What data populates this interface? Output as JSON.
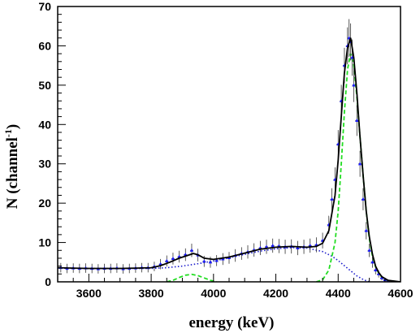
{
  "chart_data": {
    "type": "scatter",
    "title": "",
    "xlabel": "energy (keV)",
    "ylabel": {
      "main": "N (channel",
      "superscript": "-1",
      "close": ")"
    },
    "xlim": [
      3500,
      4600
    ],
    "ylim": [
      0,
      70
    ],
    "x_ticks": [
      "3600",
      "3800",
      "4000",
      "4200",
      "4400",
      "4600"
    ],
    "y_ticks": [
      "0",
      "10",
      "20",
      "30",
      "40",
      "50",
      "60",
      "70"
    ],
    "grid": false,
    "legend": "none",
    "colors": {
      "data_points": "#1a1aff",
      "total_fit": "#000000",
      "peak_components": "#22dd22",
      "background_component": "#1a1acc"
    },
    "series": [
      {
        "kind": "data-points-with-errorbars",
        "x": [
          3510,
          3530,
          3550,
          3570,
          3590,
          3610,
          3630,
          3650,
          3670,
          3690,
          3710,
          3730,
          3750,
          3770,
          3790,
          3810,
          3830,
          3850,
          3870,
          3890,
          3910,
          3930,
          3950,
          3970,
          3990,
          4010,
          4030,
          4050,
          4070,
          4090,
          4110,
          4130,
          4150,
          4170,
          4190,
          4210,
          4230,
          4250,
          4270,
          4290,
          4310,
          4330,
          4350,
          4370,
          4380,
          4390,
          4400,
          4410,
          4420,
          4430,
          4435,
          4440,
          4445,
          4450,
          4460,
          4470,
          4480,
          4490,
          4500,
          4510,
          4520,
          4530,
          4540,
          4550,
          4560
        ],
        "y": [
          3.6,
          3.4,
          3.5,
          3.4,
          3.5,
          3.4,
          3.3,
          3.4,
          3.4,
          3.5,
          3.3,
          3.4,
          3.5,
          3.6,
          3.6,
          3.9,
          4.5,
          5.3,
          5.9,
          6.4,
          6.9,
          8.0,
          6.8,
          5.2,
          5.0,
          5.4,
          5.8,
          6.1,
          6.7,
          7.2,
          7.6,
          8.1,
          8.6,
          8.9,
          9.2,
          9.1,
          8.9,
          9.0,
          8.6,
          8.9,
          9.2,
          9.4,
          10.5,
          14.5,
          21.0,
          26.0,
          35.0,
          46.0,
          55.0,
          60.0,
          62.0,
          61.0,
          57.0,
          50.0,
          41.0,
          30.0,
          21.0,
          13.0,
          8.0,
          5.0,
          3.0,
          2.0,
          1.0,
          0.5,
          0.2
        ],
        "yerr": [
          1.2,
          1.2,
          1.2,
          1.2,
          1.2,
          1.2,
          1.2,
          1.2,
          1.2,
          1.2,
          1.2,
          1.2,
          1.2,
          1.2,
          1.2,
          1.2,
          1.3,
          1.4,
          1.5,
          1.5,
          1.6,
          1.7,
          1.6,
          1.4,
          1.4,
          1.4,
          1.5,
          1.5,
          1.6,
          1.6,
          1.7,
          1.7,
          1.8,
          1.8,
          1.8,
          1.8,
          1.8,
          1.8,
          1.8,
          1.8,
          1.8,
          1.9,
          2.0,
          2.3,
          2.8,
          3.1,
          3.6,
          4.1,
          4.5,
          4.7,
          4.8,
          4.7,
          4.6,
          4.3,
          3.9,
          3.3,
          2.8,
          2.2,
          1.7,
          1.4,
          1.1,
          0.9,
          0.6,
          0.5,
          0.3
        ]
      },
      {
        "kind": "total-fit",
        "x": [
          3500,
          3550,
          3600,
          3650,
          3700,
          3750,
          3800,
          3830,
          3860,
          3890,
          3920,
          3935,
          3950,
          3970,
          4000,
          4050,
          4100,
          4150,
          4200,
          4250,
          4300,
          4330,
          4350,
          4370,
          4390,
          4400,
          4410,
          4420,
          4430,
          4440,
          4450,
          4460,
          4470,
          4480,
          4490,
          4500,
          4510,
          4520,
          4530,
          4540,
          4560,
          4600
        ],
        "y": [
          3.6,
          3.5,
          3.4,
          3.4,
          3.4,
          3.5,
          3.6,
          4.1,
          5.0,
          6.0,
          6.8,
          7.2,
          6.9,
          6.0,
          5.7,
          6.3,
          7.3,
          8.3,
          8.8,
          9.0,
          8.8,
          9.0,
          9.8,
          13.0,
          22.0,
          31.0,
          42.0,
          53.0,
          59.5,
          62.0,
          57.0,
          48.0,
          37.0,
          27.0,
          18.0,
          11.5,
          7.0,
          4.0,
          2.4,
          1.3,
          0.4,
          0.0
        ]
      },
      {
        "kind": "peak-component-1",
        "x": [
          3850,
          3870,
          3890,
          3910,
          3930,
          3950,
          3970,
          3990,
          4010
        ],
        "y": [
          0.0,
          0.4,
          1.1,
          1.7,
          1.9,
          1.6,
          1.0,
          0.4,
          0.0
        ]
      },
      {
        "kind": "peak-component-2",
        "x": [
          4330,
          4350,
          4370,
          4390,
          4400,
          4410,
          4420,
          4430,
          4440,
          4450,
          4460,
          4470,
          4480,
          4490,
          4500,
          4510,
          4520,
          4530,
          4540,
          4560,
          4600
        ],
        "y": [
          0.0,
          0.5,
          3.0,
          10.0,
          18.0,
          30.0,
          43.0,
          54.0,
          58.0,
          55.0,
          47.0,
          37.0,
          27.0,
          18.0,
          11.0,
          6.5,
          3.8,
          2.2,
          1.2,
          0.3,
          0.0
        ]
      },
      {
        "kind": "background-component",
        "x": [
          3500,
          3600,
          3700,
          3800,
          3850,
          3900,
          3950,
          4000,
          4050,
          4100,
          4150,
          4200,
          4250,
          4300,
          4350,
          4380,
          4400,
          4420,
          4440,
          4460,
          4480,
          4500
        ],
        "y": [
          3.5,
          3.4,
          3.4,
          3.4,
          3.6,
          4.0,
          4.6,
          5.3,
          6.1,
          7.0,
          7.8,
          8.4,
          8.7,
          8.6,
          7.7,
          6.5,
          5.4,
          4.1,
          2.8,
          1.5,
          0.6,
          0.0
        ]
      }
    ]
  }
}
